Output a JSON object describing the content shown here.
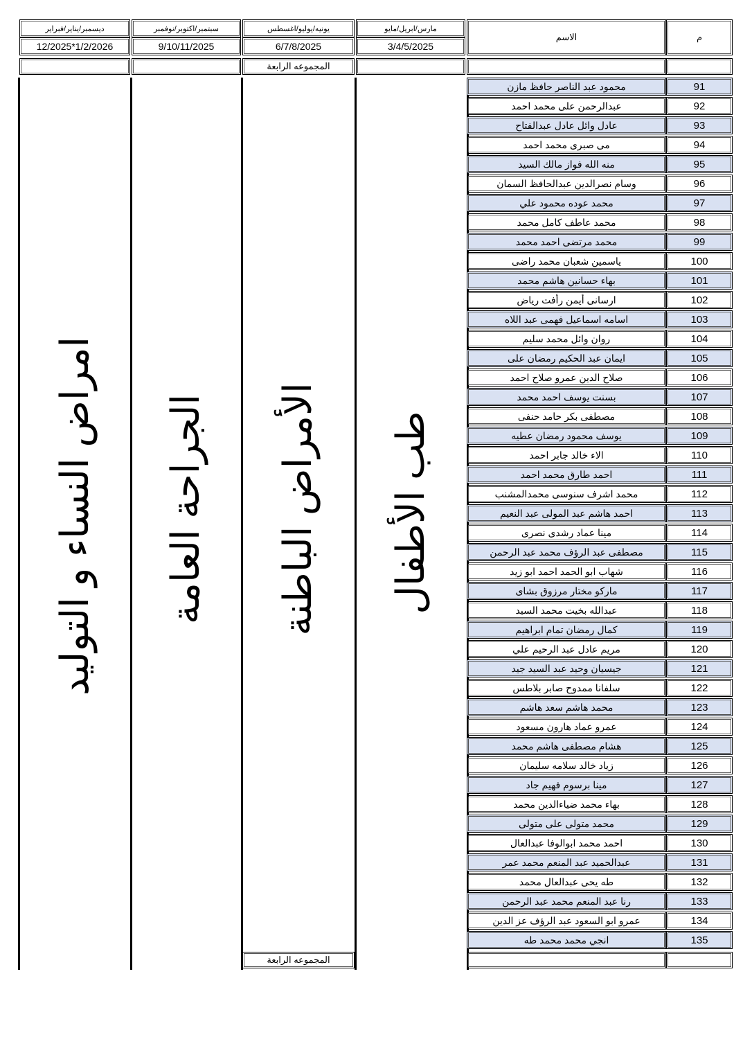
{
  "header": {
    "number_label": "م",
    "name_label": "الاسم",
    "periods": [
      {
        "months": "مارس/ابريل/مايو",
        "dates": "3/4/5/2025"
      },
      {
        "months": "يونيه/يوليو/اغسطس",
        "dates": "6/7/8/2025"
      },
      {
        "months": "سبتمبر/اكتوبر/نوفمبر",
        "dates": "9/10/11/2025"
      },
      {
        "months": "ديسمبر/يناير/فبراير",
        "dates": "12/2025*1/2/2026"
      }
    ]
  },
  "group_label_top": "المجموعه الرابعة",
  "group_label_bottom": "المجموعه الرابعة",
  "rotations": [
    "طب الأطفال",
    "الأمراض الباطنة",
    "الجراحة العامة",
    "امراض النساء و التوليد"
  ],
  "row_shade_color": "#d9e1f2",
  "rows": [
    {
      "n": "91",
      "name": "محمود عبد الناصر حافظ مازن"
    },
    {
      "n": "92",
      "name": "عبدالرحمن على محمد احمد"
    },
    {
      "n": "93",
      "name": "عادل وائل عادل عبدالفتاح"
    },
    {
      "n": "94",
      "name": "مى صبرى محمد احمد"
    },
    {
      "n": "95",
      "name": "منه الله فواز مالك السيد"
    },
    {
      "n": "96",
      "name": "وسام نصرالدين عبدالحافظ السمان"
    },
    {
      "n": "97",
      "name": "محمد عوده محمود علي"
    },
    {
      "n": "98",
      "name": "محمد عاطف كامل محمد"
    },
    {
      "n": "99",
      "name": "محمد مرتضى احمد محمد"
    },
    {
      "n": "100",
      "name": "ياسمين شعبان محمد راضى"
    },
    {
      "n": "101",
      "name": "بهاء حسانين هاشم محمد"
    },
    {
      "n": "102",
      "name": "ارسانى أيمن رأفت رياض"
    },
    {
      "n": "103",
      "name": "اسامه اسماعيل فهمى عبد اللاه"
    },
    {
      "n": "104",
      "name": "روان وائل محمد سليم"
    },
    {
      "n": "105",
      "name": "ايمان عبد الحكيم رمضان على"
    },
    {
      "n": "106",
      "name": "صلاح الدين عمرو صلاح احمد"
    },
    {
      "n": "107",
      "name": "بسنت يوسف احمد محمد"
    },
    {
      "n": "108",
      "name": "مصطفى بكر حامد حنفى"
    },
    {
      "n": "109",
      "name": "يوسف محمود رمضان عطيه"
    },
    {
      "n": "110",
      "name": "الاء خالد جابر احمد"
    },
    {
      "n": "111",
      "name": "احمد طارق محمد احمد"
    },
    {
      "n": "112",
      "name": "محمد اشرف سنوسى محمدالمشنب"
    },
    {
      "n": "113",
      "name": "احمد هاشم عبد المولى عبد النعيم"
    },
    {
      "n": "114",
      "name": "مينا عماد رشدى نصرى"
    },
    {
      "n": "115",
      "name": "مصطفى عبد الرؤف محمد عبد الرحمن"
    },
    {
      "n": "116",
      "name": "شهاب ابو الحمد احمد ابو زيد"
    },
    {
      "n": "117",
      "name": "ماركو مختار مرزوق بشاى"
    },
    {
      "n": "118",
      "name": "عبدالله بخيت محمد السيد"
    },
    {
      "n": "119",
      "name": "كمال رمضان تمام ابراهيم"
    },
    {
      "n": "120",
      "name": "مريم عادل عبد الرحيم علي"
    },
    {
      "n": "121",
      "name": "جيسيان وحيد عبد السيد جيد"
    },
    {
      "n": "122",
      "name": "سلفانا ممدوح صابر بلاطس"
    },
    {
      "n": "123",
      "name": "محمد هاشم سعد هاشم"
    },
    {
      "n": "124",
      "name": "عمرو عماد هارون مسعود"
    },
    {
      "n": "125",
      "name": "هشام مصطفى هاشم محمد"
    },
    {
      "n": "126",
      "name": "زياد خالد سلامه سليمان"
    },
    {
      "n": "127",
      "name": "مينا برسوم فهيم جاد"
    },
    {
      "n": "128",
      "name": "بهاء محمد ضياءالدين محمد"
    },
    {
      "n": "129",
      "name": "محمد متولى على متولى"
    },
    {
      "n": "130",
      "name": "احمد محمد ابوالوفا عبدالعال"
    },
    {
      "n": "131",
      "name": "عبدالحميد عبد المنعم محمد عمر"
    },
    {
      "n": "132",
      "name": "طه يحى عبدالعال محمد"
    },
    {
      "n": "133",
      "name": "رنا عبد المنعم محمد عبد الرحمن"
    },
    {
      "n": "134",
      "name": "عمرو ابو السعود عبد الرؤف عز الدين"
    },
    {
      "n": "135",
      "name": "انجي محمد محمد طه"
    }
  ]
}
